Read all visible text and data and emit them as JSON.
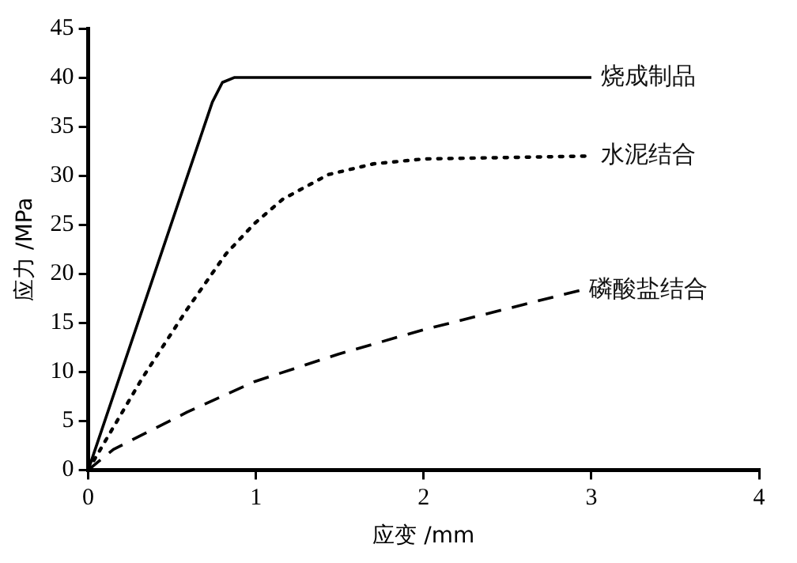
{
  "chart_data": {
    "type": "line",
    "xlabel": "应变 /mm",
    "ylabel": "应力 /MPa",
    "xlim": [
      0,
      4
    ],
    "xticks": [
      0,
      1,
      2,
      3,
      4
    ],
    "ylim": [
      0,
      45
    ],
    "yticks": [
      0,
      5,
      10,
      15,
      20,
      25,
      30,
      35,
      40,
      45
    ],
    "grid": false,
    "legend": false,
    "marker": "none",
    "series": [
      {
        "name": "烧成制品",
        "color": "#000000",
        "line_style": "solid",
        "x": [
          0,
          0.74,
          0.8,
          0.87,
          3
        ],
        "values": [
          0,
          37.5,
          39.5,
          40,
          40
        ]
      },
      {
        "name": "水泥结合",
        "color": "#000000",
        "line_style": "dotted",
        "x": [
          0,
          0.32,
          0.59,
          0.82,
          0.99,
          1.16,
          1.43,
          1.7,
          2,
          3
        ],
        "values": [
          0,
          9.3,
          16.4,
          22,
          25.1,
          27.6,
          30.1,
          31.2,
          31.7,
          32
        ]
      },
      {
        "name": "磷酸盐结合",
        "color": "#000000",
        "line_style": "dashed",
        "x": [
          0,
          0.15,
          0.59,
          0.99,
          1.49,
          2,
          2.93
        ],
        "values": [
          0,
          2.1,
          5.9,
          9,
          11.8,
          14.3,
          18.3
        ]
      }
    ]
  }
}
